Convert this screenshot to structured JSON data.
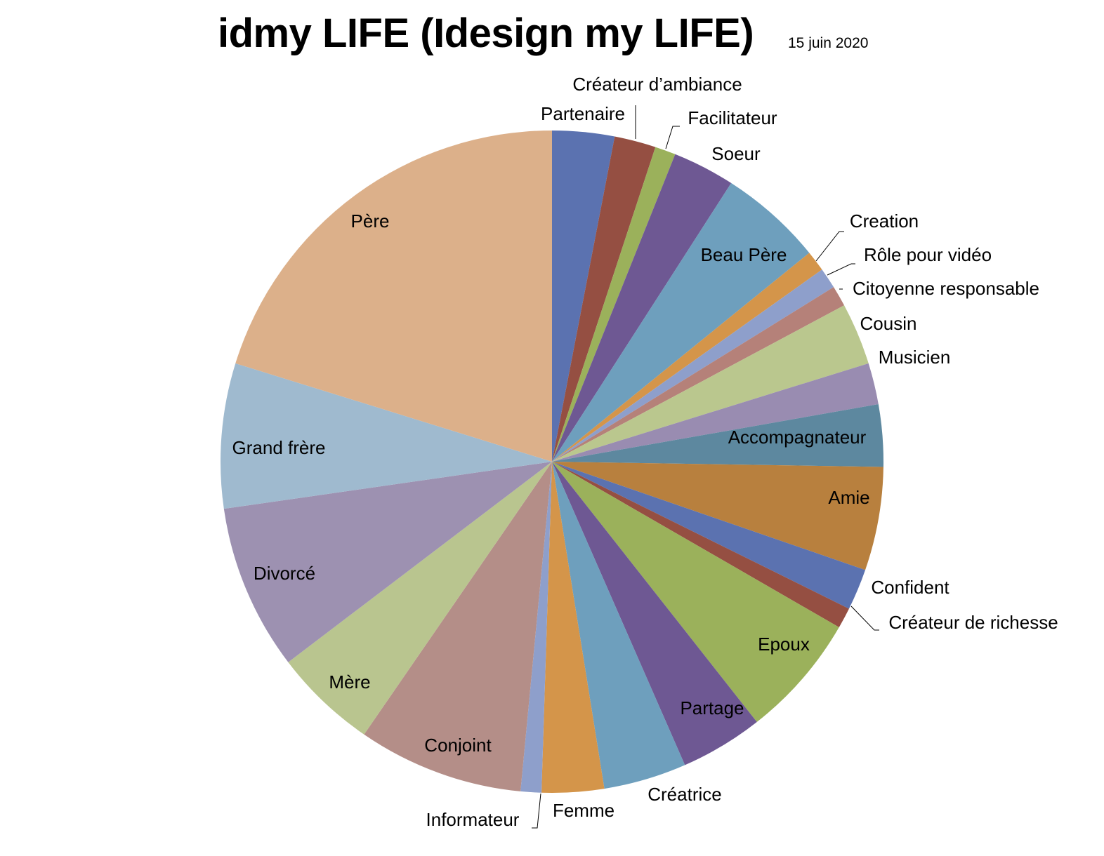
{
  "chart_data": {
    "type": "pie",
    "title": "idmy LIFE (Idesign my LIFE)",
    "subtitle": "15 juin 2020",
    "start": "top",
    "direction": "clockwise",
    "legend": "none (data labels on slices)",
    "slices": [
      {
        "label": "Partenaire",
        "value": 3,
        "color": "#5B72B0"
      },
      {
        "label": "Créateur d’ambiance",
        "value": 2,
        "color": "#954F42"
      },
      {
        "label": "Facilitateur",
        "value": 1,
        "color": "#9BB15B"
      },
      {
        "label": "Soeur",
        "value": 3,
        "color": "#6E5893"
      },
      {
        "label": "Beau Père",
        "value": 5,
        "color": "#6E9FBD"
      },
      {
        "label": "Creation",
        "value": 1,
        "color": "#D4954A"
      },
      {
        "label": "Rôle pour vidéo",
        "value": 1,
        "color": "#8E9FCB"
      },
      {
        "label": "Citoyenne responsable",
        "value": 1,
        "color": "#B58179"
      },
      {
        "label": "Cousin",
        "value": 3,
        "color": "#BAC78E"
      },
      {
        "label": "Musicien",
        "value": 2,
        "color": "#998CB1"
      },
      {
        "label": "Accompagnateur",
        "value": 3,
        "color": "#5D889F"
      },
      {
        "label": "Amie",
        "value": 5,
        "color": "#B8803E"
      },
      {
        "label": "Confident",
        "value": 2,
        "color": "#5B72B0"
      },
      {
        "label": "Créateur de richesse",
        "value": 1,
        "color": "#954F42"
      },
      {
        "label": "Epoux",
        "value": 6,
        "color": "#9BB15B"
      },
      {
        "label": "Partage",
        "value": 4,
        "color": "#6E5893"
      },
      {
        "label": "Créatrice",
        "value": 4,
        "color": "#6E9FBD"
      },
      {
        "label": "Femme",
        "value": 3,
        "color": "#D4954A"
      },
      {
        "label": "Informateur",
        "value": 1,
        "color": "#8E9FCB"
      },
      {
        "label": "Conjoint",
        "value": 8,
        "color": "#B48E88"
      },
      {
        "label": "Mère",
        "value": 5,
        "color": "#B9C58F"
      },
      {
        "label": "Divorcé",
        "value": 8,
        "color": "#9D91B1"
      },
      {
        "label": "Grand frère",
        "value": 7,
        "color": "#9FBACF"
      },
      {
        "label": "Père",
        "value": 20,
        "color": "#DCB08A"
      }
    ]
  }
}
